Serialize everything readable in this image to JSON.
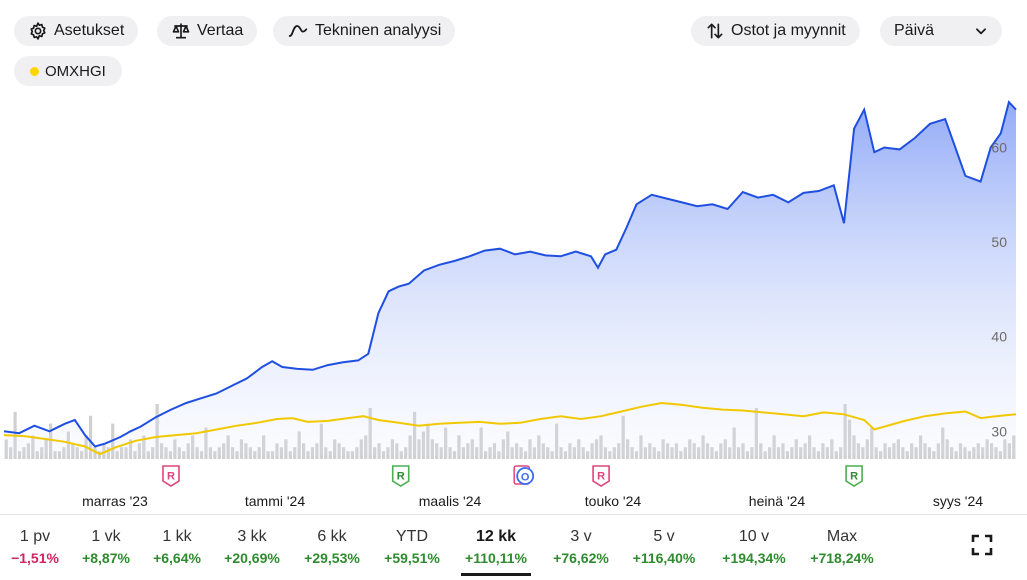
{
  "toolbar": {
    "settings_label": "Asetukset",
    "compare_label": "Vertaa",
    "technical_label": "Tekninen analyysi",
    "trades_label": "Ostot ja myynnit",
    "interval_label": "Päivä"
  },
  "legend": {
    "benchmark_name": "OMXHGI",
    "benchmark_color": "#ffd400"
  },
  "colors": {
    "price_line": "#1f4fe0",
    "benchmark_line": "#f2c800",
    "volume": "#d0d0d0",
    "positive": "#2e8b2e",
    "negative": "#d0245e"
  },
  "chart_data": {
    "type": "line",
    "y_ticks": [
      "60",
      "50",
      "40",
      "30"
    ],
    "x_ticks": [
      "marras '23",
      "tammi '24",
      "maalis '24",
      "touko '24",
      "heinä '24",
      "syys '24"
    ],
    "ylim": [
      27.5,
      66.5
    ],
    "x_range": [
      0,
      100
    ],
    "series": [
      {
        "role": "price",
        "points": [
          [
            0,
            30.0
          ],
          [
            1.5,
            29.8
          ],
          [
            3,
            30.6
          ],
          [
            4.5,
            30.0
          ],
          [
            6,
            30.8
          ],
          [
            7,
            31.2
          ],
          [
            8,
            29.6
          ],
          [
            9,
            28.4
          ],
          [
            10,
            28.7
          ],
          [
            11.5,
            29.4
          ],
          [
            12.5,
            30.0
          ],
          [
            13.5,
            30.5
          ],
          [
            15,
            31.5
          ],
          [
            16.5,
            32.3
          ],
          [
            18,
            33.0
          ],
          [
            19.5,
            33.5
          ],
          [
            21,
            34.0
          ],
          [
            22.5,
            34.8
          ],
          [
            24,
            35.6
          ],
          [
            25.5,
            36.8
          ],
          [
            26.5,
            37.4
          ],
          [
            27.5,
            36.8
          ],
          [
            29,
            36.6
          ],
          [
            30.5,
            36.5
          ],
          [
            32,
            37.0
          ],
          [
            33.5,
            37.3
          ],
          [
            35,
            37.5
          ],
          [
            36,
            38.2
          ],
          [
            37,
            42.5
          ],
          [
            38,
            44.8
          ],
          [
            39,
            45.3
          ],
          [
            40,
            45.6
          ],
          [
            41.5,
            47.0
          ],
          [
            43,
            47.6
          ],
          [
            44.5,
            48.0
          ],
          [
            46,
            48.5
          ],
          [
            47.5,
            49.1
          ],
          [
            49,
            49.3
          ],
          [
            50.5,
            48.7
          ],
          [
            52,
            49.0
          ],
          [
            53.5,
            48.6
          ],
          [
            55,
            48.5
          ],
          [
            56.5,
            49.0
          ],
          [
            58,
            48.5
          ],
          [
            58.7,
            47.3
          ],
          [
            59.4,
            48.7
          ],
          [
            60.5,
            49.2
          ],
          [
            61.5,
            51.5
          ],
          [
            62.5,
            54.0
          ],
          [
            64,
            55.0
          ],
          [
            65.5,
            54.6
          ],
          [
            67,
            54.2
          ],
          [
            68.5,
            53.8
          ],
          [
            70,
            54.0
          ],
          [
            71.5,
            53.5
          ],
          [
            73,
            55.3
          ],
          [
            74.5,
            54.7
          ],
          [
            76,
            55.0
          ],
          [
            77.5,
            54.2
          ],
          [
            79,
            55.2
          ],
          [
            80.5,
            55.4
          ],
          [
            82,
            56.0
          ],
          [
            83,
            52.0
          ],
          [
            84,
            62.0
          ],
          [
            85,
            64.0
          ],
          [
            86,
            59.5
          ],
          [
            87,
            60.0
          ],
          [
            88.5,
            59.8
          ],
          [
            90,
            61.0
          ],
          [
            91.5,
            62.5
          ],
          [
            93,
            63.0
          ],
          [
            94,
            60.0
          ],
          [
            95,
            57.0
          ],
          [
            96.5,
            56.4
          ],
          [
            97.5,
            60.0
          ],
          [
            98.5,
            61.5
          ],
          [
            99.3,
            64.8
          ],
          [
            100,
            64.0
          ]
        ]
      },
      {
        "role": "benchmark",
        "name": "OMXHGI",
        "points": [
          [
            0,
            29.6
          ],
          [
            2,
            29.5
          ],
          [
            4,
            29.2
          ],
          [
            6,
            28.9
          ],
          [
            8,
            28.4
          ],
          [
            9.5,
            27.6
          ],
          [
            11,
            28.3
          ],
          [
            13,
            29.0
          ],
          [
            15,
            29.4
          ],
          [
            17,
            29.6
          ],
          [
            19,
            29.8
          ],
          [
            21,
            30.2
          ],
          [
            23,
            30.6
          ],
          [
            25,
            30.9
          ],
          [
            27,
            31.3
          ],
          [
            28.5,
            31.4
          ],
          [
            30,
            31.0
          ],
          [
            32,
            31.1
          ],
          [
            34,
            31.4
          ],
          [
            35.5,
            31.6
          ],
          [
            37,
            31.2
          ],
          [
            39,
            30.9
          ],
          [
            41,
            30.6
          ],
          [
            43,
            30.8
          ],
          [
            45,
            30.9
          ],
          [
            47,
            31.0
          ],
          [
            49,
            30.8
          ],
          [
            51,
            30.9
          ],
          [
            53,
            31.3
          ],
          [
            55,
            31.6
          ],
          [
            57,
            31.3
          ],
          [
            59,
            31.6
          ],
          [
            61,
            32.1
          ],
          [
            63,
            32.6
          ],
          [
            65,
            33.0
          ],
          [
            67,
            32.8
          ],
          [
            69,
            32.5
          ],
          [
            71,
            32.3
          ],
          [
            73,
            32.2
          ],
          [
            75,
            32.0
          ],
          [
            77,
            31.8
          ],
          [
            79,
            31.6
          ],
          [
            81,
            32.0
          ],
          [
            83,
            31.8
          ],
          [
            85,
            31.2
          ],
          [
            86,
            30.2
          ],
          [
            87,
            30.5
          ],
          [
            89,
            31.1
          ],
          [
            91,
            31.6
          ],
          [
            93,
            31.9
          ],
          [
            95,
            32.1
          ],
          [
            96.5,
            31.4
          ],
          [
            98,
            31.6
          ],
          [
            100,
            31.8
          ]
        ]
      }
    ],
    "volume": [
      5,
      3,
      12,
      2,
      3,
      4,
      6,
      2,
      3,
      5,
      9,
      2,
      2,
      3,
      7,
      4,
      3,
      2,
      6,
      11,
      3,
      2,
      4,
      3,
      9,
      2,
      3,
      3,
      5,
      2,
      4,
      6,
      2,
      3,
      14,
      4,
      3,
      2,
      5,
      3,
      2,
      4,
      6,
      3,
      2,
      8,
      3,
      2,
      3,
      4,
      6,
      3,
      2,
      5,
      4,
      3,
      2,
      3,
      6,
      2,
      2,
      4,
      3,
      5,
      2,
      3,
      7,
      4,
      2,
      3,
      4,
      9,
      3,
      2,
      5,
      4,
      3,
      2,
      2,
      3,
      5,
      6,
      13,
      3,
      4,
      2,
      3,
      5,
      4,
      2,
      3,
      6,
      12,
      5,
      7,
      9,
      5,
      4,
      3,
      8,
      3,
      2,
      6,
      3,
      4,
      5,
      3,
      8,
      2,
      3,
      4,
      2,
      5,
      7,
      3,
      4,
      3,
      2,
      5,
      3,
      6,
      4,
      3,
      2,
      9,
      3,
      2,
      4,
      3,
      5,
      3,
      2,
      4,
      5,
      6,
      3,
      2,
      3,
      4,
      11,
      5,
      3,
      2,
      6,
      3,
      4,
      3,
      2,
      5,
      4,
      3,
      4,
      2,
      3,
      5,
      4,
      3,
      6,
      4,
      3,
      2,
      4,
      5,
      3,
      8,
      3,
      4,
      2,
      3,
      13,
      4,
      2,
      3,
      6,
      3,
      4,
      2,
      3,
      5,
      3,
      4,
      6,
      3,
      2,
      4,
      3,
      5,
      2,
      3,
      14,
      10,
      6,
      4,
      3,
      5,
      8,
      3,
      2,
      4,
      3,
      4,
      5,
      3,
      2,
      4,
      3,
      6,
      4,
      3,
      2,
      4,
      8,
      5,
      3,
      2,
      4,
      3,
      2,
      3,
      4,
      3,
      5,
      4,
      3,
      2,
      5,
      4,
      6
    ],
    "markers": [
      {
        "label": "R",
        "pos": 16.5,
        "type": "pink"
      },
      {
        "label": "R",
        "pos": 39.2,
        "type": "green"
      },
      {
        "label": "O",
        "pos": 51.5,
        "type": "blue"
      },
      {
        "label": "R",
        "pos": 59.0,
        "type": "pink"
      },
      {
        "label": "R",
        "pos": 84.0,
        "type": "green"
      }
    ]
  },
  "periods": [
    {
      "label": "1 pv",
      "value": "−1,51%",
      "sign": "neg"
    },
    {
      "label": "1 vk",
      "value": "+8,87%",
      "sign": "pos"
    },
    {
      "label": "1 kk",
      "value": "+6,64%",
      "sign": "pos"
    },
    {
      "label": "3 kk",
      "value": "+20,69%",
      "sign": "pos"
    },
    {
      "label": "6 kk",
      "value": "+29,53%",
      "sign": "pos"
    },
    {
      "label": "YTD",
      "value": "+59,51%",
      "sign": "pos"
    },
    {
      "label": "12 kk",
      "value": "+110,11%",
      "sign": "pos",
      "active": true
    },
    {
      "label": "3 v",
      "value": "+76,62%",
      "sign": "pos"
    },
    {
      "label": "5 v",
      "value": "+116,40%",
      "sign": "pos"
    },
    {
      "label": "10 v",
      "value": "+194,34%",
      "sign": "pos"
    },
    {
      "label": "Max",
      "value": "+718,24%",
      "sign": "pos"
    }
  ]
}
